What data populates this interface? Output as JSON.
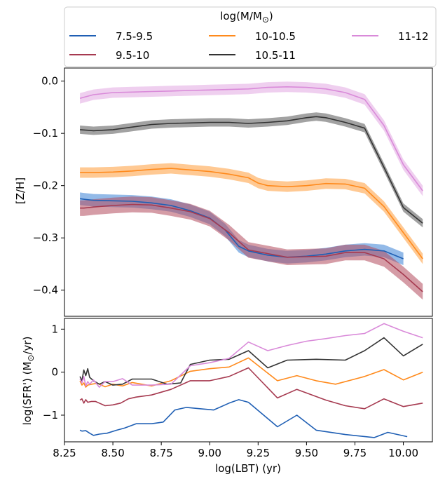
{
  "chart_data": [
    {
      "type": "line",
      "panel": "top",
      "ylabel": "[Z/H]",
      "xlim": [
        8.25,
        10.15
      ],
      "ylim": [
        -0.45,
        0.025
      ],
      "yticks": [
        0.0,
        -0.1,
        -0.2,
        -0.3,
        -0.4
      ],
      "ytick_labels": [
        "0.0",
        "−0.1",
        "−0.2",
        "−0.3",
        "−0.4"
      ],
      "grid": false,
      "legend": {
        "title": "log(M/M",
        "title_sub": "⊙",
        "title_close": ")",
        "placement": "top, outside",
        "columns": 3
      },
      "series": [
        {
          "name": "7.5-9.5",
          "color": "#1f5fb4",
          "band_color": "#3b82d6",
          "band_half_width": 0.012,
          "x": [
            8.33,
            8.35,
            8.4,
            8.5,
            8.6,
            8.7,
            8.8,
            8.9,
            9.0,
            9.08,
            9.15,
            9.2,
            9.3,
            9.4,
            9.5,
            9.6,
            9.7,
            9.8,
            9.9,
            10.0
          ],
          "y": [
            -0.225,
            -0.226,
            -0.228,
            -0.229,
            -0.23,
            -0.233,
            -0.238,
            -0.248,
            -0.262,
            -0.285,
            -0.316,
            -0.325,
            -0.333,
            -0.337,
            -0.335,
            -0.331,
            -0.325,
            -0.322,
            -0.325,
            -0.34
          ]
        },
        {
          "name": "9.5-10",
          "color": "#a63a50",
          "band_color": "#b24a5c",
          "band_half_width": 0.015,
          "x": [
            8.33,
            8.35,
            8.4,
            8.5,
            8.6,
            8.7,
            8.8,
            8.9,
            9.0,
            9.1,
            9.2,
            9.3,
            9.4,
            9.5,
            9.6,
            9.7,
            9.8,
            9.9,
            10.0,
            10.1
          ],
          "y": [
            -0.243,
            -0.243,
            -0.241,
            -0.238,
            -0.236,
            -0.237,
            -0.243,
            -0.25,
            -0.263,
            -0.29,
            -0.323,
            -0.33,
            -0.337,
            -0.336,
            -0.335,
            -0.328,
            -0.328,
            -0.34,
            -0.37,
            -0.403
          ]
        },
        {
          "name": "10-10.5",
          "color": "#ff8a1c",
          "band_color": "#ff9d3a",
          "band_half_width": 0.01,
          "x": [
            8.33,
            8.4,
            8.5,
            8.6,
            8.7,
            8.8,
            8.9,
            9.0,
            9.1,
            9.2,
            9.25,
            9.3,
            9.4,
            9.5,
            9.6,
            9.7,
            9.8,
            9.9,
            10.0,
            10.1
          ],
          "y": [
            -0.175,
            -0.175,
            -0.174,
            -0.172,
            -0.169,
            -0.167,
            -0.17,
            -0.173,
            -0.178,
            -0.185,
            -0.195,
            -0.2,
            -0.202,
            -0.2,
            -0.196,
            -0.197,
            -0.205,
            -0.24,
            -0.29,
            -0.34
          ]
        },
        {
          "name": "10.5-11",
          "color": "#333333",
          "band_color": "#555555",
          "band_half_width": 0.008,
          "x": [
            8.33,
            8.4,
            8.5,
            8.6,
            8.7,
            8.8,
            8.9,
            9.0,
            9.1,
            9.2,
            9.3,
            9.4,
            9.5,
            9.55,
            9.6,
            9.7,
            9.8,
            9.9,
            10.0,
            10.1
          ],
          "y": [
            -0.093,
            -0.095,
            -0.093,
            -0.088,
            -0.083,
            -0.081,
            -0.08,
            -0.079,
            -0.079,
            -0.081,
            -0.079,
            -0.076,
            -0.07,
            -0.068,
            -0.07,
            -0.079,
            -0.09,
            -0.165,
            -0.242,
            -0.272
          ]
        },
        {
          "name": "11-12",
          "color": "#d98ad9",
          "band_color": "#e2a8e2",
          "band_half_width": 0.01,
          "x": [
            8.33,
            8.4,
            8.5,
            8.6,
            8.7,
            8.8,
            8.9,
            9.0,
            9.1,
            9.2,
            9.3,
            9.4,
            9.5,
            9.6,
            9.7,
            9.8,
            9.9,
            10.0,
            10.1
          ],
          "y": [
            -0.033,
            -0.026,
            -0.022,
            -0.021,
            -0.02,
            -0.019,
            -0.018,
            -0.017,
            -0.016,
            -0.015,
            -0.012,
            -0.011,
            -0.012,
            -0.015,
            -0.022,
            -0.035,
            -0.085,
            -0.16,
            -0.21
          ]
        }
      ]
    },
    {
      "type": "line",
      "panel": "bottom",
      "xlabel": "log(LBT) (yr)",
      "ylabel_main": "log(SFR') (M",
      "ylabel_sub": "⊙",
      "ylabel_tail": "/yr)",
      "xlim": [
        8.25,
        10.15
      ],
      "ylim": [
        -1.62,
        1.25
      ],
      "xticks": [
        8.25,
        8.5,
        8.75,
        9.0,
        9.25,
        9.5,
        9.75,
        10.0
      ],
      "xtick_labels": [
        "8.25",
        "8.50",
        "8.75",
        "9.00",
        "9.25",
        "9.50",
        "9.75",
        "10.00"
      ],
      "yticks": [
        1,
        0,
        -1
      ],
      "ytick_labels": [
        "1",
        "0",
        "−1"
      ],
      "grid": false,
      "series": [
        {
          "name": "7.5-9.5",
          "color": "#1f5fb4",
          "x": [
            8.33,
            8.34,
            8.36,
            8.38,
            8.4,
            8.43,
            8.47,
            8.52,
            8.56,
            8.62,
            8.7,
            8.76,
            8.82,
            8.88,
            8.95,
            9.02,
            9.1,
            9.15,
            9.2,
            9.35,
            9.45,
            9.55,
            9.7,
            9.85,
            9.92,
            10.02
          ],
          "y": [
            -1.35,
            -1.37,
            -1.36,
            -1.42,
            -1.47,
            -1.44,
            -1.42,
            -1.35,
            -1.3,
            -1.2,
            -1.2,
            -1.16,
            -0.88,
            -0.82,
            -0.85,
            -0.88,
            -0.72,
            -0.64,
            -0.7,
            -1.27,
            -1.0,
            -1.35,
            -1.45,
            -1.52,
            -1.4,
            -1.5
          ]
        },
        {
          "name": "9.5-10",
          "color": "#a63a50",
          "x": [
            8.33,
            8.34,
            8.35,
            8.36,
            8.37,
            8.39,
            8.41,
            8.43,
            8.46,
            8.5,
            8.54,
            8.58,
            8.62,
            8.7,
            8.8,
            8.9,
            9.0,
            9.1,
            9.2,
            9.35,
            9.45,
            9.6,
            9.7,
            9.8,
            9.9,
            10.0,
            10.1
          ],
          "y": [
            -0.65,
            -0.62,
            -0.72,
            -0.64,
            -0.7,
            -0.68,
            -0.68,
            -0.72,
            -0.78,
            -0.76,
            -0.72,
            -0.62,
            -0.58,
            -0.53,
            -0.4,
            -0.2,
            -0.2,
            -0.1,
            0.1,
            -0.6,
            -0.4,
            -0.65,
            -0.78,
            -0.85,
            -0.62,
            -0.8,
            -0.72
          ]
        },
        {
          "name": "10-10.5",
          "color": "#ff8a1c",
          "x": [
            8.33,
            8.34,
            8.35,
            8.36,
            8.37,
            8.39,
            8.42,
            8.46,
            8.5,
            8.55,
            8.6,
            8.7,
            8.8,
            8.9,
            9.0,
            9.1,
            9.2,
            9.35,
            9.45,
            9.55,
            9.65,
            9.8,
            9.9,
            10.0,
            10.1
          ],
          "y": [
            -0.2,
            -0.3,
            -0.25,
            -0.35,
            -0.3,
            -0.28,
            -0.26,
            -0.34,
            -0.28,
            -0.32,
            -0.24,
            -0.32,
            -0.2,
            0.02,
            0.08,
            0.12,
            0.33,
            -0.2,
            -0.08,
            -0.2,
            -0.28,
            -0.1,
            0.06,
            -0.18,
            0.0
          ]
        },
        {
          "name": "10.5-11",
          "color": "#333333",
          "x": [
            8.33,
            8.34,
            8.35,
            8.36,
            8.37,
            8.38,
            8.4,
            8.43,
            8.46,
            8.5,
            8.55,
            8.6,
            8.7,
            8.78,
            8.85,
            8.9,
            9.0,
            9.1,
            9.2,
            9.3,
            9.4,
            9.55,
            9.7,
            9.8,
            9.9,
            10.0,
            10.1
          ],
          "y": [
            -0.1,
            -0.2,
            0.05,
            -0.08,
            0.08,
            -0.12,
            -0.2,
            -0.28,
            -0.22,
            -0.3,
            -0.28,
            -0.16,
            -0.16,
            -0.28,
            -0.25,
            0.18,
            0.28,
            0.3,
            0.5,
            0.1,
            0.28,
            0.3,
            0.28,
            0.5,
            0.8,
            0.38,
            0.65
          ]
        },
        {
          "name": "11-12",
          "color": "#d98ad9",
          "x": [
            8.33,
            8.34,
            8.35,
            8.36,
            8.37,
            8.38,
            8.4,
            8.43,
            8.46,
            8.5,
            8.55,
            8.6,
            8.7,
            8.8,
            8.9,
            9.0,
            9.1,
            9.2,
            9.3,
            9.4,
            9.5,
            9.6,
            9.7,
            9.8,
            9.9,
            10.0,
            10.1
          ],
          "y": [
            -0.15,
            -0.25,
            -0.1,
            -0.32,
            -0.22,
            -0.28,
            -0.18,
            -0.35,
            -0.22,
            -0.22,
            -0.15,
            -0.3,
            -0.3,
            -0.28,
            0.15,
            0.22,
            0.32,
            0.7,
            0.5,
            0.62,
            0.72,
            0.78,
            0.85,
            0.9,
            1.13,
            0.95,
            0.8
          ]
        }
      ]
    }
  ]
}
